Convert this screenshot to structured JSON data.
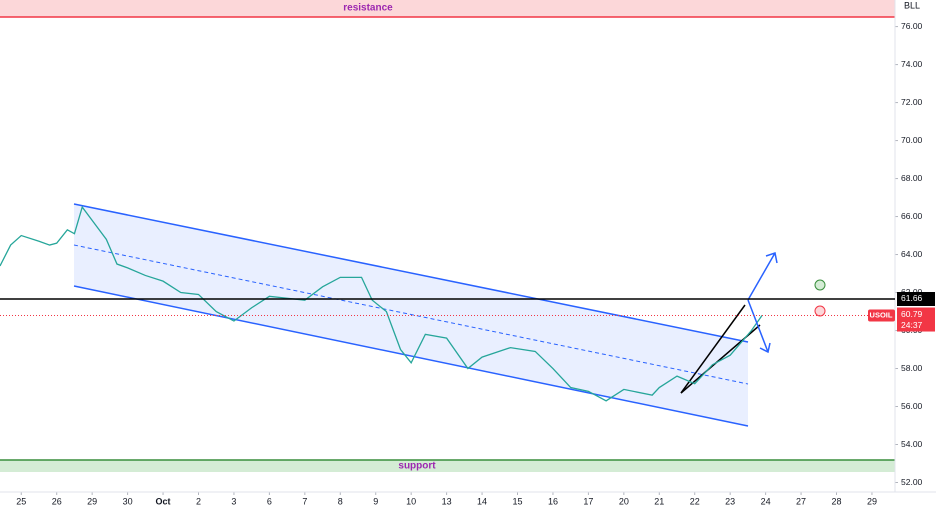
{
  "chart_data": {
    "type": "line",
    "symbol_label": "BLL",
    "x": [
      -0.6,
      -0.3,
      0,
      0.5,
      0.8,
      1,
      1.3,
      1.5,
      1.72,
      2,
      2.4,
      2.7,
      3,
      3.5,
      4,
      4.5,
      5,
      5.5,
      6,
      6.5,
      7,
      7.5,
      8,
      8.5,
      9,
      9.6,
      9.9,
      10.3,
      10.7,
      11,
      11.4,
      12,
      12.6,
      13,
      13.8,
      14.5,
      15,
      15.5,
      16,
      16.5,
      17,
      17.8,
      18,
      18.5,
      19,
      19.5,
      20,
      20.6,
      20.9
    ],
    "series": [
      {
        "name": "USOIL",
        "color": "#26a69a",
        "values": [
          63.4,
          64.5,
          65.0,
          64.7,
          64.5,
          64.6,
          65.3,
          65.1,
          66.5,
          65.8,
          64.8,
          63.5,
          63.3,
          62.9,
          62.6,
          62.0,
          61.9,
          61.0,
          60.5,
          61.2,
          61.8,
          61.7,
          61.6,
          62.3,
          62.8,
          62.8,
          61.6,
          61.0,
          59.0,
          58.3,
          59.8,
          59.6,
          58.0,
          58.6,
          59.1,
          58.9,
          58.0,
          57.0,
          56.8,
          56.3,
          56.9,
          56.6,
          57.0,
          57.6,
          57.2,
          58.2,
          58.7,
          60.0,
          60.8
        ]
      }
    ],
    "xlim": [
      -0.6,
      24.65
    ],
    "xticks": [
      {
        "value": 0,
        "label": "25"
      },
      {
        "value": 1,
        "label": "26"
      },
      {
        "value": 2,
        "label": "29"
      },
      {
        "value": 3,
        "label": "30"
      },
      {
        "value": 4,
        "label": "Oct"
      },
      {
        "value": 5,
        "label": "2"
      },
      {
        "value": 6,
        "label": "3"
      },
      {
        "value": 7,
        "label": "6"
      },
      {
        "value": 8,
        "label": "7"
      },
      {
        "value": 9,
        "label": "8"
      },
      {
        "value": 10,
        "label": "9"
      },
      {
        "value": 11,
        "label": "10"
      },
      {
        "value": 12,
        "label": "13"
      },
      {
        "value": 13,
        "label": "14"
      },
      {
        "value": 14,
        "label": "15"
      },
      {
        "value": 15,
        "label": "16"
      },
      {
        "value": 16,
        "label": "17"
      },
      {
        "value": 17,
        "label": "20"
      },
      {
        "value": 18,
        "label": "21"
      },
      {
        "value": 19,
        "label": "22"
      },
      {
        "value": 20,
        "label": "23"
      },
      {
        "value": 21,
        "label": "24"
      },
      {
        "value": 22,
        "label": "27"
      },
      {
        "value": 23,
        "label": "28"
      },
      {
        "value": 24,
        "label": "29"
      }
    ],
    "ylim": [
      51.5,
      77.4
    ],
    "yticks": [
      {
        "value": 52,
        "label": "52.00"
      },
      {
        "value": 54,
        "label": "54.00"
      },
      {
        "value": 56,
        "label": "56.00"
      },
      {
        "value": 58,
        "label": "58.00"
      },
      {
        "value": 60,
        "label": "60.00"
      },
      {
        "value": 62,
        "label": "62.00"
      },
      {
        "value": 64,
        "label": "64.00"
      },
      {
        "value": 66,
        "label": "66.00"
      },
      {
        "value": 68,
        "label": "68.00"
      },
      {
        "value": 70,
        "label": "70.00"
      },
      {
        "value": 72,
        "label": "72.00"
      },
      {
        "value": 74,
        "label": "74.00"
      },
      {
        "value": 76,
        "label": "76.00"
      }
    ],
    "annotations": [
      "resistance",
      "support"
    ],
    "horizontal_line": {
      "value": 61.66,
      "label": "61.66",
      "color": "#000000"
    },
    "last_price": {
      "value": 60.79,
      "label": "60.79",
      "countdown": "24:37",
      "color": "#f23645"
    }
  }
}
